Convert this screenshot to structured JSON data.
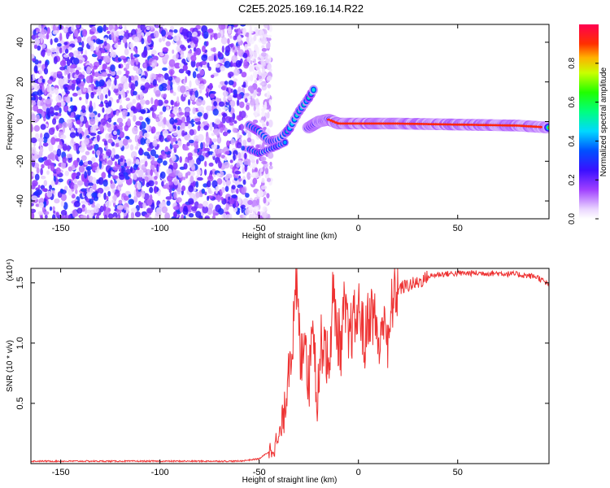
{
  "figure": {
    "title": "C2E5.2025.169.16.14.R22"
  },
  "chart_data": [
    {
      "type": "heatmap",
      "title": "C2E5.2025.169.16.14.R22",
      "xlabel": "Height of straight line (km)",
      "ylabel": "Frequency (Hz)",
      "xlim": [
        -165,
        96
      ],
      "ylim": [
        -49,
        49
      ],
      "x_ticks": [
        -150,
        -100,
        -50,
        0,
        50
      ],
      "y_ticks": [
        -40,
        -20,
        0,
        20,
        40
      ],
      "colorbar": {
        "label": "Normalized spectral amplitude",
        "range": [
          0,
          1
        ],
        "ticks": [
          0.0,
          0.2,
          0.4,
          0.6,
          0.8
        ]
      },
      "features": {
        "noise_region_x": [
          -165,
          -48
        ],
        "lower_track": {
          "x": [
            -55,
            -50,
            -45,
            -40,
            -35,
            -30,
            -25,
            -22
          ],
          "y": [
            -2,
            -5,
            -10,
            -9,
            -4,
            5,
            12,
            17
          ]
        },
        "upper_track": {
          "x": [
            -55,
            -50,
            -45,
            -40,
            -36
          ],
          "y": [
            -14,
            -16,
            -14,
            -12,
            -10
          ]
        },
        "main_line": {
          "x": [
            -25,
            -20,
            -15,
            -10,
            0,
            20,
            50,
            80,
            96
          ],
          "y": [
            -3,
            0,
            1,
            -1,
            -1,
            -1,
            -1.5,
            -2,
            -3
          ]
        }
      }
    },
    {
      "type": "line",
      "xlabel": "Height of straight line (km)",
      "ylabel": "SNR (10 * v/v)",
      "yscale_label": "(x10⁴)",
      "xlim": [
        -165,
        96
      ],
      "ylim": [
        0,
        1.62
      ],
      "x_ticks": [
        -150,
        -100,
        -50,
        0,
        50
      ],
      "y_ticks": [
        0.5,
        1.0,
        1.5
      ],
      "series": [
        {
          "color": "#ee3333",
          "x": [
            -165,
            -150,
            -100,
            -60,
            -50,
            -45,
            -40,
            -37,
            -35,
            -33,
            -31,
            -29,
            -27,
            -25,
            -23,
            -21,
            -19,
            -17,
            -15,
            -13,
            -11,
            -9,
            -7,
            -5,
            -3,
            -1,
            1,
            3,
            5,
            7,
            9,
            11,
            13,
            15,
            17,
            20,
            25,
            30,
            35,
            40,
            50,
            60,
            70,
            80,
            90,
            96
          ],
          "y": [
            0.02,
            0.02,
            0.02,
            0.02,
            0.04,
            0.1,
            0.2,
            0.45,
            0.9,
            1.05,
            1.45,
            0.8,
            1.2,
            0.6,
            1.35,
            0.5,
            0.95,
            1.1,
            0.7,
            1.4,
            1.15,
            0.95,
            1.3,
            1.0,
            1.15,
            1.2,
            1.3,
            0.95,
            1.25,
            1.25,
            1.15,
            0.9,
            1.35,
            0.9,
            1.35,
            1.45,
            1.48,
            1.5,
            1.55,
            1.57,
            1.58,
            1.58,
            1.58,
            1.57,
            1.55,
            1.48
          ]
        }
      ]
    }
  ]
}
